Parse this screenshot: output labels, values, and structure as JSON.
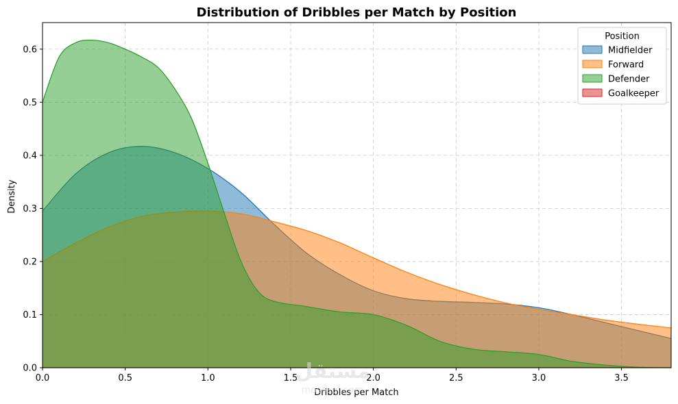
{
  "chart_data": {
    "type": "area",
    "title": "Distribution of Dribbles per Match by Position",
    "xlabel": "Dribbles per Match",
    "ylabel": "Density",
    "xlim": [
      0,
      3.8
    ],
    "ylim": [
      0,
      0.65
    ],
    "xticks": [
      "0.0",
      "0.5",
      "1.0",
      "1.5",
      "2.0",
      "2.5",
      "3.0",
      "3.5"
    ],
    "yticks": [
      "0.0",
      "0.1",
      "0.2",
      "0.3",
      "0.4",
      "0.5",
      "0.6"
    ],
    "grid": true,
    "legend": {
      "title": "Position",
      "placement": "top-right"
    },
    "series": [
      {
        "name": "Midfielder",
        "color": "#1f77b4",
        "x": [
          0,
          0.2,
          0.4,
          0.6,
          0.8,
          1.0,
          1.2,
          1.4,
          1.6,
          1.8,
          2.0,
          2.2,
          2.4,
          2.6,
          2.8,
          3.0,
          3.2,
          3.4,
          3.6,
          3.8
        ],
        "y": [
          0.295,
          0.365,
          0.405,
          0.417,
          0.405,
          0.375,
          0.33,
          0.27,
          0.215,
          0.175,
          0.145,
          0.13,
          0.125,
          0.123,
          0.12,
          0.113,
          0.1,
          0.085,
          0.07,
          0.055
        ]
      },
      {
        "name": "Forward",
        "color": "#ff7f0e",
        "x": [
          0,
          0.2,
          0.4,
          0.6,
          0.8,
          1.0,
          1.2,
          1.4,
          1.6,
          1.8,
          2.0,
          2.2,
          2.4,
          2.6,
          2.8,
          3.0,
          3.2,
          3.4,
          3.6,
          3.8
        ],
        "y": [
          0.2,
          0.235,
          0.265,
          0.285,
          0.293,
          0.295,
          0.29,
          0.275,
          0.258,
          0.235,
          0.207,
          0.18,
          0.157,
          0.138,
          0.122,
          0.11,
          0.1,
          0.09,
          0.082,
          0.075
        ]
      },
      {
        "name": "Defender",
        "color": "#2ca02c",
        "x": [
          0,
          0.1,
          0.2,
          0.3,
          0.4,
          0.5,
          0.6,
          0.7,
          0.8,
          0.9,
          1.0,
          1.1,
          1.2,
          1.3,
          1.4,
          1.6,
          1.8,
          2.0,
          2.2,
          2.4,
          2.6,
          2.8,
          3.0,
          3.2,
          3.4,
          3.6,
          3.8
        ],
        "y": [
          0.5,
          0.585,
          0.612,
          0.617,
          0.612,
          0.6,
          0.585,
          0.565,
          0.525,
          0.47,
          0.385,
          0.29,
          0.2,
          0.145,
          0.125,
          0.115,
          0.105,
          0.1,
          0.08,
          0.05,
          0.035,
          0.03,
          0.025,
          0.012,
          0.005,
          0.001,
          0.0
        ]
      },
      {
        "name": "Goalkeeper",
        "color": "#d62728",
        "x": [
          0,
          3.8
        ],
        "y": [
          0,
          0
        ]
      }
    ]
  },
  "watermark": {
    "text": "مستقل",
    "subtext": "mostaql.com"
  }
}
